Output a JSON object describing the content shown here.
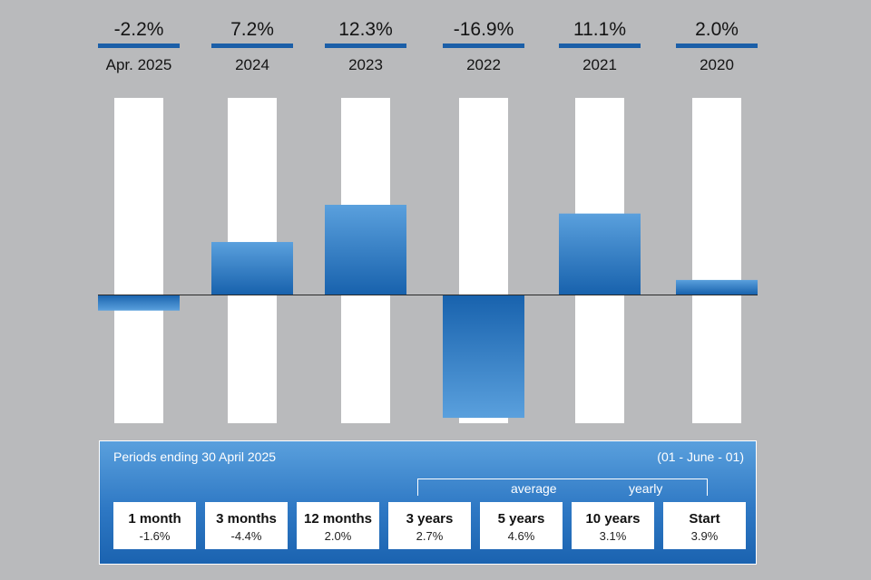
{
  "colors": {
    "background": "#b9babc",
    "bar_top": "#5aa0dd",
    "bar_bottom": "#1862ad",
    "track": "#ffffff",
    "header_rule": "#1b5fa8"
  },
  "chart_data": {
    "type": "bar",
    "categories": [
      "Apr. 2025",
      "2024",
      "2023",
      "2022",
      "2021",
      "2020"
    ],
    "values": [
      -2.2,
      7.2,
      12.3,
      -16.9,
      11.1,
      2.0
    ],
    "value_labels": [
      "-2.2%",
      "7.2%",
      "12.3%",
      "-16.9%",
      "11.1%",
      "2.0%"
    ],
    "ylim": [
      -17,
      17
    ],
    "grid": false,
    "legend": "none",
    "label_placement": "top"
  },
  "summary": {
    "title": "Periods ending 30 April 2025",
    "inception_date": "(01 - June - 01)",
    "average_label_1": "average",
    "average_label_2": "yearly",
    "periods": [
      {
        "label": "1 month",
        "value": "-1.6%"
      },
      {
        "label": "3 months",
        "value": "-4.4%"
      },
      {
        "label": "12 months",
        "value": "2.0%"
      },
      {
        "label": "3 years",
        "value": "2.7%"
      },
      {
        "label": "5 years",
        "value": "4.6%"
      },
      {
        "label": "10 years",
        "value": "3.1%"
      },
      {
        "label": "Start",
        "value": "3.9%"
      }
    ]
  }
}
